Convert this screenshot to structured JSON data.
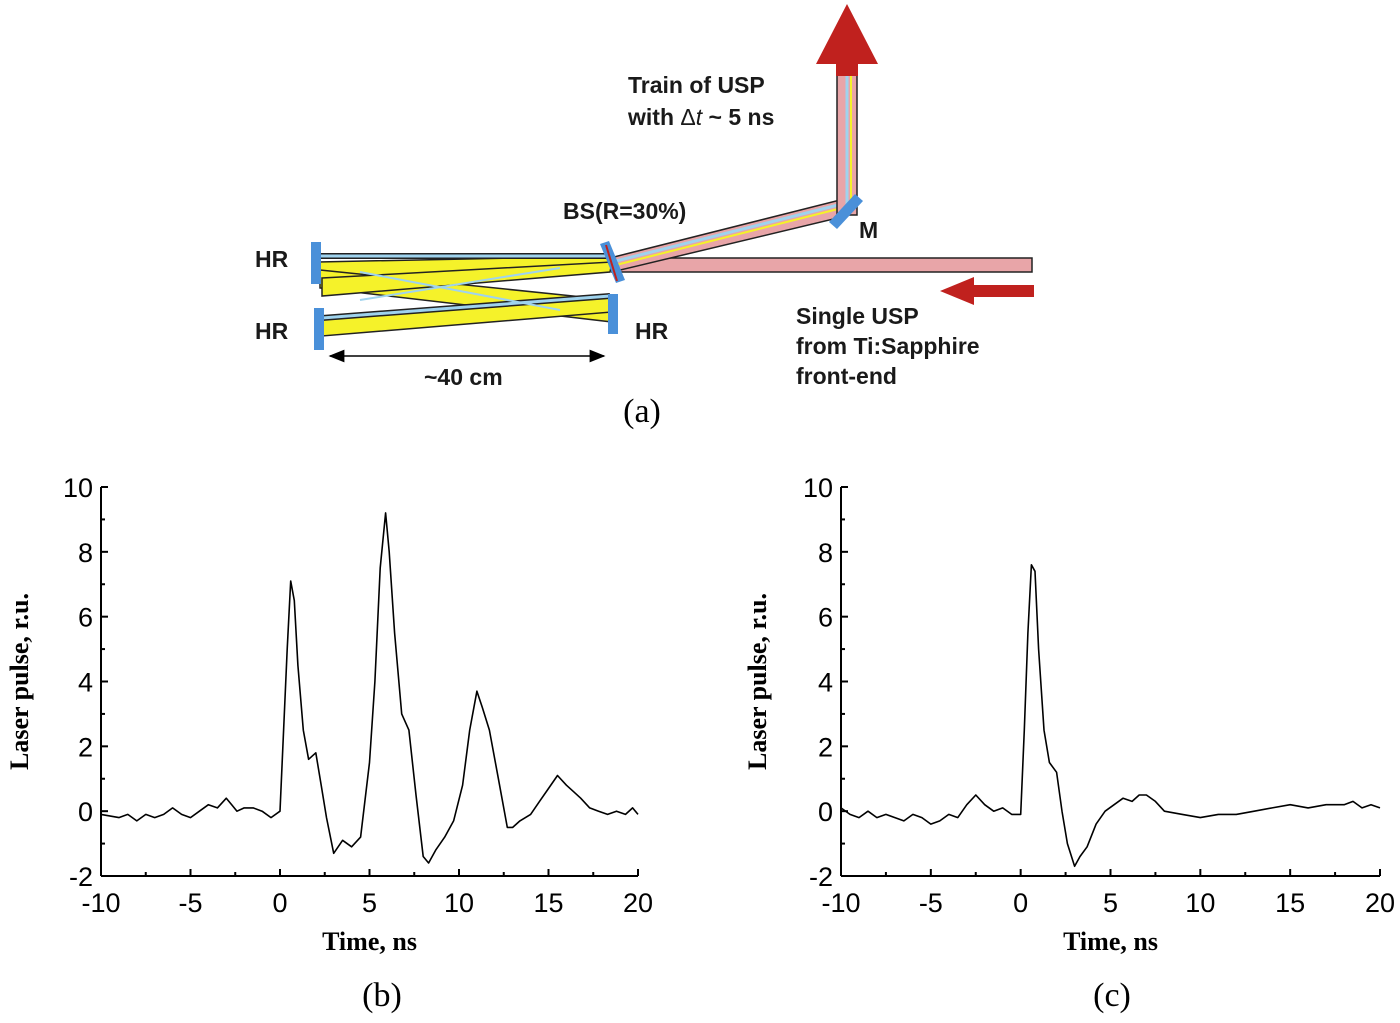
{
  "diagram": {
    "label_train_line1": "Train of USP",
    "label_train_line2_prefix": "with ",
    "label_train_line2_delta": "Δ",
    "label_train_line2_t": "t",
    "label_train_line2_suffix": " ~ 5 ns",
    "label_bs": "BS(R=30%)",
    "label_m": "M",
    "label_hr": "HR",
    "label_single_line1": "Single USP",
    "label_single_line2": "from Ti:Sapphire",
    "label_single_line3": "front-end",
    "label_distance": "~40 cm",
    "caption": "(a)",
    "colors": {
      "beam_pink": "#e8a5a8",
      "beam_yellow": "#f5f22a",
      "beam_blue": "#9fd3ee",
      "mirror_blue": "#4a90d9",
      "arrow_red": "#c0211e"
    }
  },
  "chart_data": [
    {
      "type": "line",
      "caption": "(b)",
      "xlabel": "Time, ns",
      "ylabel": "Laser pulse, r.u.",
      "xlim": [
        -10,
        20
      ],
      "ylim": [
        -2,
        10
      ],
      "xticks": [
        "-10",
        "-5",
        "0",
        "5",
        "10",
        "15",
        "20"
      ],
      "yticks": [
        "-2",
        "0",
        "2",
        "4",
        "6",
        "8",
        "10"
      ],
      "series": [
        {
          "x": [
            -10,
            -9,
            -8.5,
            -8,
            -7.5,
            -7,
            -6.5,
            -6,
            -5.5,
            -5,
            -4.5,
            -4,
            -3.5,
            -3,
            -2.7,
            -2.4,
            -2,
            -1.5,
            -1,
            -0.5,
            0,
            0.2,
            0.4,
            0.6,
            0.8,
            1.0,
            1.3,
            1.6,
            2.0,
            2.3,
            2.6,
            3.0,
            3.5,
            4.0,
            4.5,
            5.0,
            5.3,
            5.6,
            5.9,
            6.1,
            6.4,
            6.8,
            7.2,
            7.6,
            8.0,
            8.3,
            8.7,
            9.2,
            9.7,
            10.2,
            10.6,
            11.0,
            11.3,
            11.7,
            12.2,
            12.7,
            13.0,
            13.4,
            14.0,
            14.5,
            15.0,
            15.5,
            16.0,
            16.4,
            16.8,
            17.3,
            17.8,
            18.3,
            18.8,
            19.3,
            19.7,
            20
          ],
          "values": [
            -0.1,
            -0.2,
            -0.1,
            -0.3,
            -0.1,
            -0.2,
            -0.1,
            0.1,
            -0.1,
            -0.2,
            0.0,
            0.2,
            0.1,
            0.4,
            0.2,
            0.0,
            0.1,
            0.1,
            0.0,
            -0.2,
            0.0,
            2.5,
            5.0,
            7.1,
            6.5,
            4.5,
            2.5,
            1.6,
            1.8,
            0.8,
            -0.2,
            -1.3,
            -0.9,
            -1.1,
            -0.8,
            1.5,
            4.0,
            7.5,
            9.2,
            8.0,
            5.5,
            3.0,
            2.5,
            0.5,
            -1.4,
            -1.6,
            -1.2,
            -0.8,
            -0.3,
            0.8,
            2.5,
            3.7,
            3.2,
            2.5,
            1.0,
            -0.5,
            -0.5,
            -0.3,
            -0.1,
            0.3,
            0.7,
            1.1,
            0.8,
            0.6,
            0.4,
            0.1,
            0.0,
            -0.1,
            0.0,
            -0.1,
            0.1,
            -0.1
          ]
        }
      ]
    },
    {
      "type": "line",
      "caption": "(c)",
      "xlabel": "Time, ns",
      "ylabel": "Laser pulse, r.u.",
      "xlim": [
        -10,
        20
      ],
      "ylim": [
        -2,
        10
      ],
      "xticks": [
        "-10",
        "-5",
        "0",
        "5",
        "10",
        "15",
        "20"
      ],
      "yticks": [
        "-2",
        "0",
        "2",
        "4",
        "6",
        "8",
        "10"
      ],
      "series": [
        {
          "x": [
            -10,
            -9.5,
            -9,
            -8.5,
            -8,
            -7.5,
            -7,
            -6.5,
            -6,
            -5.5,
            -5,
            -4.5,
            -4,
            -3.5,
            -3,
            -2.5,
            -2,
            -1.5,
            -1,
            -0.5,
            0,
            0.2,
            0.4,
            0.6,
            0.8,
            1.0,
            1.3,
            1.6,
            2.0,
            2.3,
            2.6,
            3.0,
            3.3,
            3.7,
            4.2,
            4.7,
            5.2,
            5.7,
            6.2,
            6.6,
            7.0,
            7.5,
            8.0,
            9.0,
            10,
            11,
            12,
            13,
            14,
            15,
            16,
            17,
            18,
            18.5,
            19,
            19.5,
            20
          ],
          "values": [
            0.1,
            -0.1,
            -0.2,
            0.0,
            -0.2,
            -0.1,
            -0.2,
            -0.3,
            -0.1,
            -0.2,
            -0.4,
            -0.3,
            -0.1,
            -0.2,
            0.2,
            0.5,
            0.2,
            0.0,
            0.1,
            -0.1,
            -0.1,
            2.5,
            5.5,
            7.6,
            7.4,
            5.0,
            2.5,
            1.5,
            1.2,
            0.0,
            -1.0,
            -1.7,
            -1.4,
            -1.1,
            -0.4,
            0.0,
            0.2,
            0.4,
            0.3,
            0.5,
            0.5,
            0.3,
            0.0,
            -0.1,
            -0.2,
            -0.1,
            -0.1,
            0.0,
            0.1,
            0.2,
            0.1,
            0.2,
            0.2,
            0.3,
            0.1,
            0.2,
            0.1
          ]
        }
      ]
    }
  ]
}
